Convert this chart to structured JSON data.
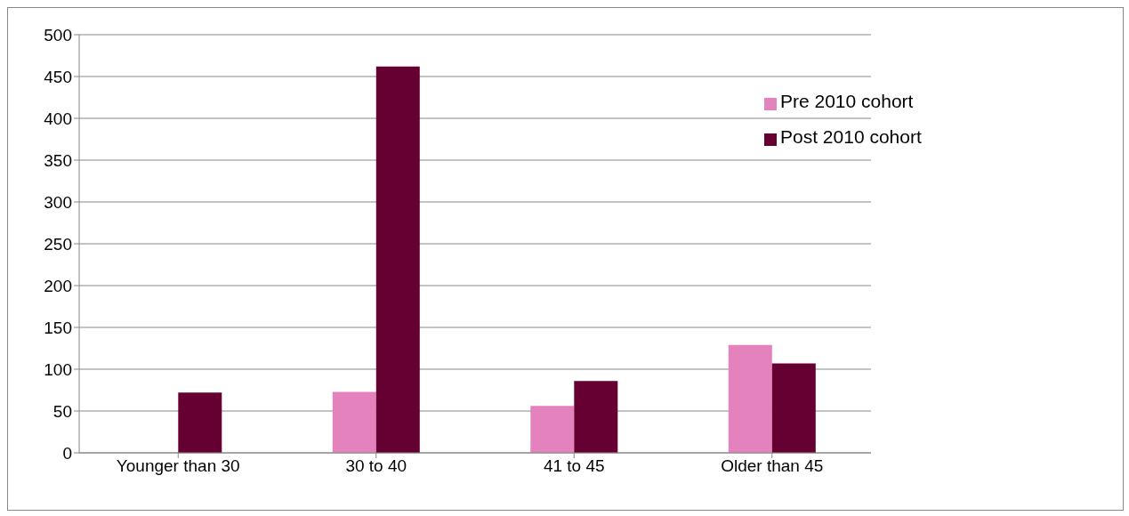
{
  "chart_data": {
    "type": "bar",
    "categories": [
      "Younger than 30",
      "30 to 40",
      "41 to 45",
      "Older than 45"
    ],
    "series": [
      {
        "name": "Pre 2010 cohort",
        "color": "#e482bd",
        "values": [
          0,
          73,
          56,
          129
        ]
      },
      {
        "name": "Post 2010 cohort",
        "color": "#660033",
        "values": [
          72,
          462,
          86,
          107
        ]
      }
    ],
    "ylim": [
      0,
      500
    ],
    "yticks": [
      0,
      50,
      100,
      150,
      200,
      250,
      300,
      350,
      400,
      450,
      500
    ],
    "grid": "y",
    "legend": "top right"
  }
}
